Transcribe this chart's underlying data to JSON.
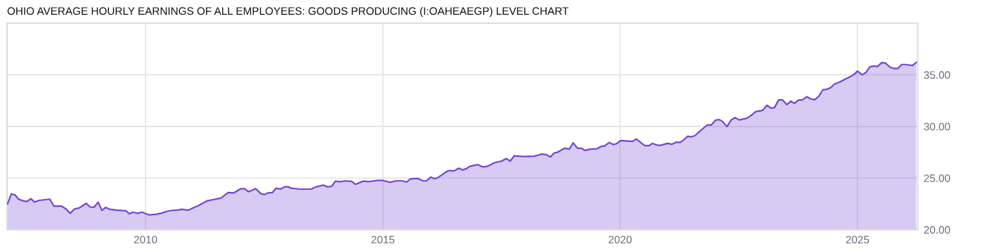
{
  "chart_data": {
    "type": "area",
    "title": "OHIO AVERAGE HOURLY EARNINGS OF ALL EMPLOYEES: GOODS PRODUCING (I:OAHEAEGP) LEVEL CHART",
    "series": [
      {
        "color": "#7446d4",
        "x": [
          2007.09,
          2007.17,
          2007.25,
          2007.32,
          2007.42,
          2007.5,
          2007.58,
          2007.66,
          2007.76,
          2007.98,
          2008.07,
          2008.23,
          2008.33,
          2008.41,
          2008.5,
          2008.6,
          2008.75,
          2008.83,
          2008.91,
          2009.0,
          2009.08,
          2009.16,
          2009.24,
          2009.39,
          2009.59,
          2009.66,
          2009.73,
          2009.83,
          2009.92,
          2010.08,
          2010.23,
          2010.33,
          2010.43,
          2010.55,
          2010.68,
          2010.75,
          2010.9,
          2011.02,
          2011.12,
          2011.3,
          2011.42,
          2011.59,
          2011.74,
          2011.86,
          2012.01,
          2012.09,
          2012.17,
          2012.32,
          2012.43,
          2012.51,
          2012.58,
          2012.67,
          2012.75,
          2012.84,
          2012.93,
          2013.0,
          2013.07,
          2013.25,
          2013.49,
          2013.6,
          2013.74,
          2013.84,
          2013.92,
          2014.0,
          2014.09,
          2014.19,
          2014.34,
          2014.42,
          2014.58,
          2014.71,
          2014.88,
          2015.0,
          2015.15,
          2015.27,
          2015.42,
          2015.5,
          2015.58,
          2015.74,
          2015.84,
          2015.92,
          2016.01,
          2016.09,
          2016.16,
          2016.34,
          2016.41,
          2016.5,
          2016.6,
          2016.68,
          2016.76,
          2016.83,
          2017.0,
          2017.1,
          2017.2,
          2017.35,
          2017.5,
          2017.6,
          2017.68,
          2017.77,
          2017.87,
          2017.97,
          2018.19,
          2018.34,
          2018.44,
          2018.53,
          2018.61,
          2018.68,
          2018.83,
          2018.93,
          2019.01,
          2019.1,
          2019.18,
          2019.26,
          2019.37,
          2019.51,
          2019.6,
          2019.67,
          2019.77,
          2019.85,
          2019.92,
          2020.01,
          2020.26,
          2020.34,
          2020.44,
          2020.52,
          2020.61,
          2020.68,
          2020.78,
          2020.85,
          2021.0,
          2021.09,
          2021.18,
          2021.26,
          2021.34,
          2021.42,
          2021.5,
          2021.57,
          2021.69,
          2021.84,
          2021.92,
          2022.01,
          2022.09,
          2022.16,
          2022.25,
          2022.34,
          2022.42,
          2022.51,
          2022.67,
          2022.76,
          2022.86,
          2023.0,
          2023.09,
          2023.18,
          2023.25,
          2023.34,
          2023.42,
          2023.51,
          2023.6,
          2023.67,
          2023.76,
          2023.84,
          2023.93,
          2024.01,
          2024.1,
          2024.19,
          2024.27,
          2024.35,
          2024.44,
          2024.51,
          2024.63,
          2024.75,
          2024.85,
          2024.93,
          2025.0,
          2025.1,
          2025.18,
          2025.26,
          2025.35,
          2025.42,
          2025.51,
          2025.59,
          2025.69,
          2025.77,
          2025.85,
          2025.93,
          2026.01,
          2026.16,
          2026.24
        ],
        "values": [
          22.5,
          23.46,
          23.37,
          22.96,
          22.8,
          22.73,
          23.0,
          22.68,
          22.84,
          22.96,
          22.28,
          22.28,
          21.98,
          21.59,
          22.0,
          22.11,
          22.55,
          22.21,
          22.16,
          22.66,
          21.87,
          22.16,
          21.98,
          21.89,
          21.82,
          21.53,
          21.7,
          21.59,
          21.7,
          21.43,
          21.5,
          21.59,
          21.75,
          21.87,
          21.89,
          21.98,
          21.89,
          22.16,
          22.34,
          22.8,
          22.91,
          23.07,
          23.59,
          23.57,
          23.98,
          23.96,
          23.68,
          23.98,
          23.48,
          23.41,
          23.57,
          23.59,
          24.02,
          23.93,
          24.16,
          24.16,
          24.02,
          23.93,
          23.93,
          24.16,
          24.32,
          24.14,
          24.2,
          24.7,
          24.64,
          24.73,
          24.68,
          24.39,
          24.7,
          24.66,
          24.77,
          24.77,
          24.59,
          24.73,
          24.73,
          24.61,
          24.93,
          24.96,
          24.73,
          24.73,
          25.09,
          24.93,
          25.04,
          25.62,
          25.73,
          25.69,
          25.96,
          25.79,
          25.91,
          26.13,
          26.3,
          26.09,
          26.13,
          26.48,
          26.64,
          26.89,
          26.64,
          27.16,
          27.12,
          27.09,
          27.12,
          27.32,
          27.27,
          27.05,
          27.43,
          27.5,
          27.89,
          27.8,
          28.41,
          27.89,
          27.89,
          27.68,
          27.8,
          27.84,
          28.07,
          28.11,
          28.45,
          28.25,
          28.32,
          28.64,
          28.55,
          28.79,
          28.41,
          28.14,
          28.14,
          28.36,
          28.18,
          28.18,
          28.36,
          28.27,
          28.48,
          28.45,
          28.71,
          29.05,
          29.0,
          29.09,
          29.59,
          30.16,
          30.14,
          30.61,
          30.66,
          30.46,
          29.98,
          30.63,
          30.86,
          30.63,
          30.8,
          31.07,
          31.45,
          31.55,
          32.05,
          31.77,
          31.82,
          32.57,
          32.57,
          32.11,
          32.45,
          32.23,
          32.57,
          32.57,
          32.88,
          32.68,
          32.59,
          32.95,
          33.55,
          33.59,
          33.77,
          34.09,
          34.32,
          34.61,
          34.82,
          35.04,
          35.36,
          35.0,
          35.23,
          35.77,
          35.86,
          35.8,
          36.18,
          36.14,
          35.73,
          35.61,
          35.61,
          36.0,
          36.0,
          35.91,
          36.2
        ]
      }
    ],
    "xlim": [
      2007.08,
      2026.27
    ],
    "xticks": [
      2010,
      2015,
      2020,
      2025
    ],
    "ylim": [
      20,
      40
    ],
    "yticks": [
      {
        "value": 20,
        "label": "20.00"
      },
      {
        "value": 25,
        "label": "25.00"
      },
      {
        "value": 30,
        "label": "30.00"
      },
      {
        "value": 35,
        "label": "35.00"
      }
    ],
    "grid": true
  }
}
